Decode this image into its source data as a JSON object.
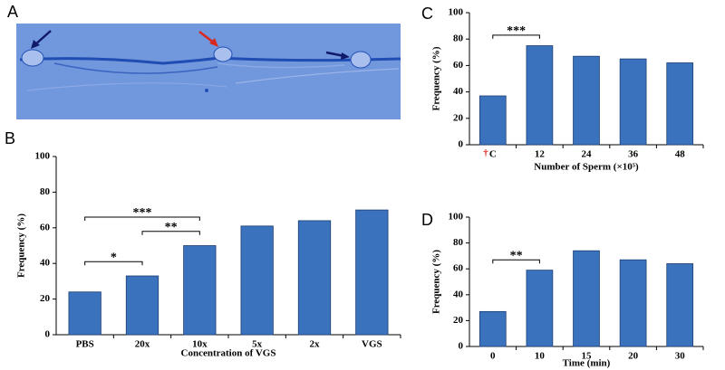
{
  "image_panel": {
    "label": "A"
  },
  "chart_data": [
    {
      "type": "bar",
      "panel": "B",
      "categories": [
        "PBS",
        "20x",
        "10x",
        "5x",
        "2x",
        "VGS"
      ],
      "values": [
        24,
        33,
        50,
        61,
        64,
        70
      ],
      "color": "#3b72bd",
      "x_label": "Concentration of VGS",
      "y_label": "Frequency  (%)",
      "ylim": [
        0,
        100
      ],
      "yticks": [
        0,
        20,
        40,
        60,
        80,
        100
      ],
      "annotations": [
        {
          "label": "*",
          "from": "PBS",
          "to": "20x"
        },
        {
          "label": "**",
          "from": "20x",
          "to": "10x"
        },
        {
          "label": "***",
          "from": "PBS",
          "to": "10x"
        }
      ]
    },
    {
      "type": "bar",
      "panel": "C",
      "categories": [
        "C",
        "12",
        "24",
        "36",
        "48"
      ],
      "dagger": "†",
      "values": [
        37,
        75,
        67,
        65,
        62
      ],
      "color": "#3b72bd",
      "x_label": "Number of Sperm (×10⁵)",
      "y_label": "Frequency (%)",
      "ylim": [
        0,
        100
      ],
      "yticks": [
        0,
        20,
        40,
        60,
        80,
        100
      ],
      "annotations": [
        {
          "label": "***",
          "from": "C",
          "to": "12"
        }
      ]
    },
    {
      "type": "bar",
      "panel": "D",
      "categories": [
        "0",
        "10",
        "15",
        "20",
        "30"
      ],
      "values": [
        27,
        59,
        74,
        67,
        64
      ],
      "color": "#3b72bd",
      "x_label": "Time (min)",
      "y_label": "Frequency (%)",
      "ylim": [
        0,
        100
      ],
      "yticks": [
        0,
        20,
        40,
        60,
        80,
        100
      ],
      "annotations": [
        {
          "label": "**",
          "from": "0",
          "to": "10"
        }
      ]
    }
  ]
}
